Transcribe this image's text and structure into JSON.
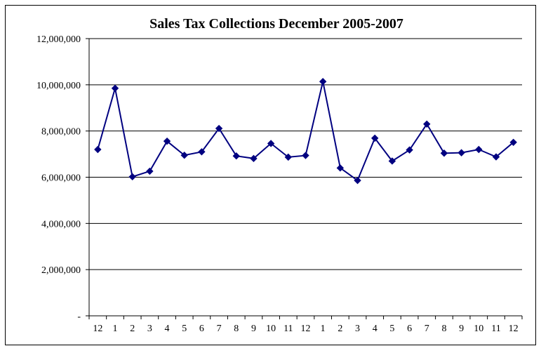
{
  "chart_data": {
    "type": "line",
    "title": "Sales Tax Collections December 2005-2007",
    "xlabel": "",
    "ylabel": "",
    "categories": [
      "12",
      "1",
      "2",
      "3",
      "4",
      "5",
      "6",
      "7",
      "8",
      "9",
      "10",
      "11",
      "12",
      "1",
      "2",
      "3",
      "4",
      "5",
      "6",
      "7",
      "8",
      "9",
      "10",
      "11",
      "12"
    ],
    "series": [
      {
        "name": "",
        "values": [
          7200000,
          9850000,
          6020000,
          6260000,
          7560000,
          6950000,
          7100000,
          8110000,
          6920000,
          6810000,
          7460000,
          6870000,
          6940000,
          10140000,
          6400000,
          5860000,
          7690000,
          6700000,
          7180000,
          8300000,
          7040000,
          7060000,
          7200000,
          6880000,
          7510000
        ],
        "color": "#000080"
      }
    ],
    "ylim": [
      0,
      12000000
    ],
    "yticks": [
      0,
      2000000,
      4000000,
      6000000,
      8000000,
      10000000,
      12000000
    ],
    "ytick_labels": [
      "-",
      "2,000,000",
      "4,000,000",
      "6,000,000",
      "8,000,000",
      "10,000,000",
      "12,000,000"
    ],
    "grid": true,
    "legend": "none",
    "marker": "diamond"
  }
}
